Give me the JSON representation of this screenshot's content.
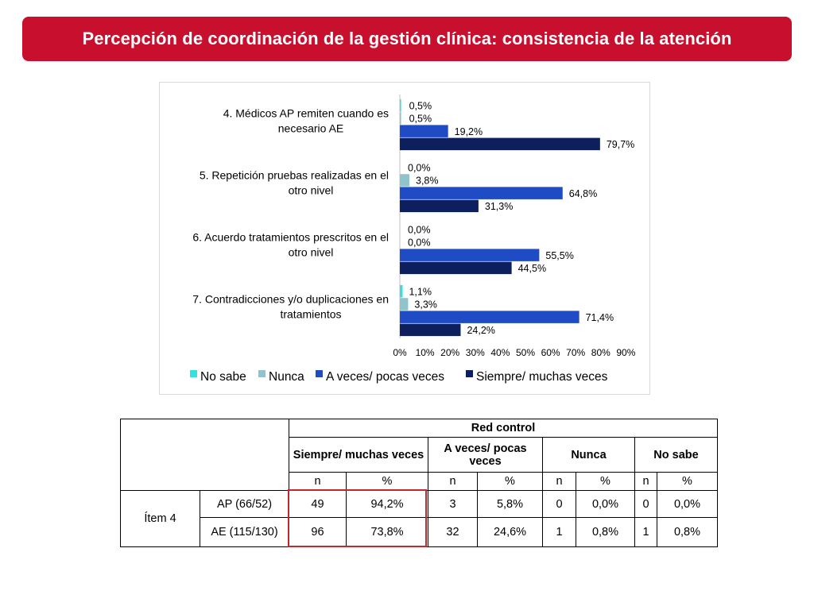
{
  "title": "Percepción de coordinación de la gestión clínica: consistencia de la atención",
  "colors": {
    "accent": "#c8102e",
    "no_sabe": "#33e0e0",
    "nunca": "#8fc4cc",
    "a_veces": "#1f4bc4",
    "siempre": "#0d1f5c",
    "highlight": "#c0282d"
  },
  "chart_data": {
    "type": "bar",
    "orientation": "horizontal",
    "categories": [
      "4. Médicos AP remiten cuando es necesario AE",
      "5. Repetición pruebas realizadas en el otro nivel",
      "6. Acuerdo tratamientos prescritos en el otro nivel",
      "7. Contradicciones y/o duplicaciones en tratamientos"
    ],
    "category_lines": [
      [
        "4. Médicos AP remiten cuando es",
        "necesario AE"
      ],
      [
        "5. Repetición pruebas realizadas en el",
        "otro nivel"
      ],
      [
        "6. Acuerdo tratamientos prescritos en el",
        "otro nivel"
      ],
      [
        "7. Contradicciones y/o duplicaciones en",
        "tratamientos"
      ]
    ],
    "series": [
      {
        "name": "No sabe",
        "values": [
          0.5,
          0.0,
          0.0,
          1.1
        ],
        "labels": [
          "0,5%",
          "0,0%",
          "0,0%",
          "1,1%"
        ]
      },
      {
        "name": "Nunca",
        "values": [
          0.5,
          3.8,
          0.0,
          3.3
        ],
        "labels": [
          "0,5%",
          "3,8%",
          "0,0%",
          "3,3%"
        ]
      },
      {
        "name": "A veces/ pocas veces",
        "values": [
          19.2,
          64.8,
          55.5,
          71.4
        ],
        "labels": [
          "19,2%",
          "64,8%",
          "55,5%",
          "71,4%"
        ]
      },
      {
        "name": "Siempre/ muchas veces",
        "values": [
          79.7,
          31.3,
          44.5,
          24.2
        ],
        "labels": [
          "79,7%",
          "31,3%",
          "44,5%",
          "24,2%"
        ]
      }
    ],
    "xlim": [
      0,
      90
    ],
    "xticks": [
      "0%",
      "10%",
      "20%",
      "30%",
      "40%",
      "50%",
      "60%",
      "70%",
      "80%",
      "90%"
    ],
    "legend_position": "bottom",
    "grid": false
  },
  "table": {
    "group_header": "Red control",
    "col_groups": [
      "Siempre/ muchas veces",
      "A veces/ pocas veces",
      "Nunca",
      "No sabe"
    ],
    "sub_headers": [
      "n",
      "%",
      "n",
      "%",
      "n",
      "%",
      "n",
      "%"
    ],
    "item_label": "Ítem 4",
    "rows": [
      {
        "label": "AP (66/52)",
        "cells": [
          "49",
          "94,2%",
          "3",
          "5,8%",
          "0",
          "0,0%",
          "0",
          "0,0%"
        ]
      },
      {
        "label": "AE (115/130)",
        "cells": [
          "96",
          "73,8%",
          "32",
          "24,6%",
          "1",
          "0,8%",
          "1",
          "0,8%"
        ]
      }
    ]
  }
}
